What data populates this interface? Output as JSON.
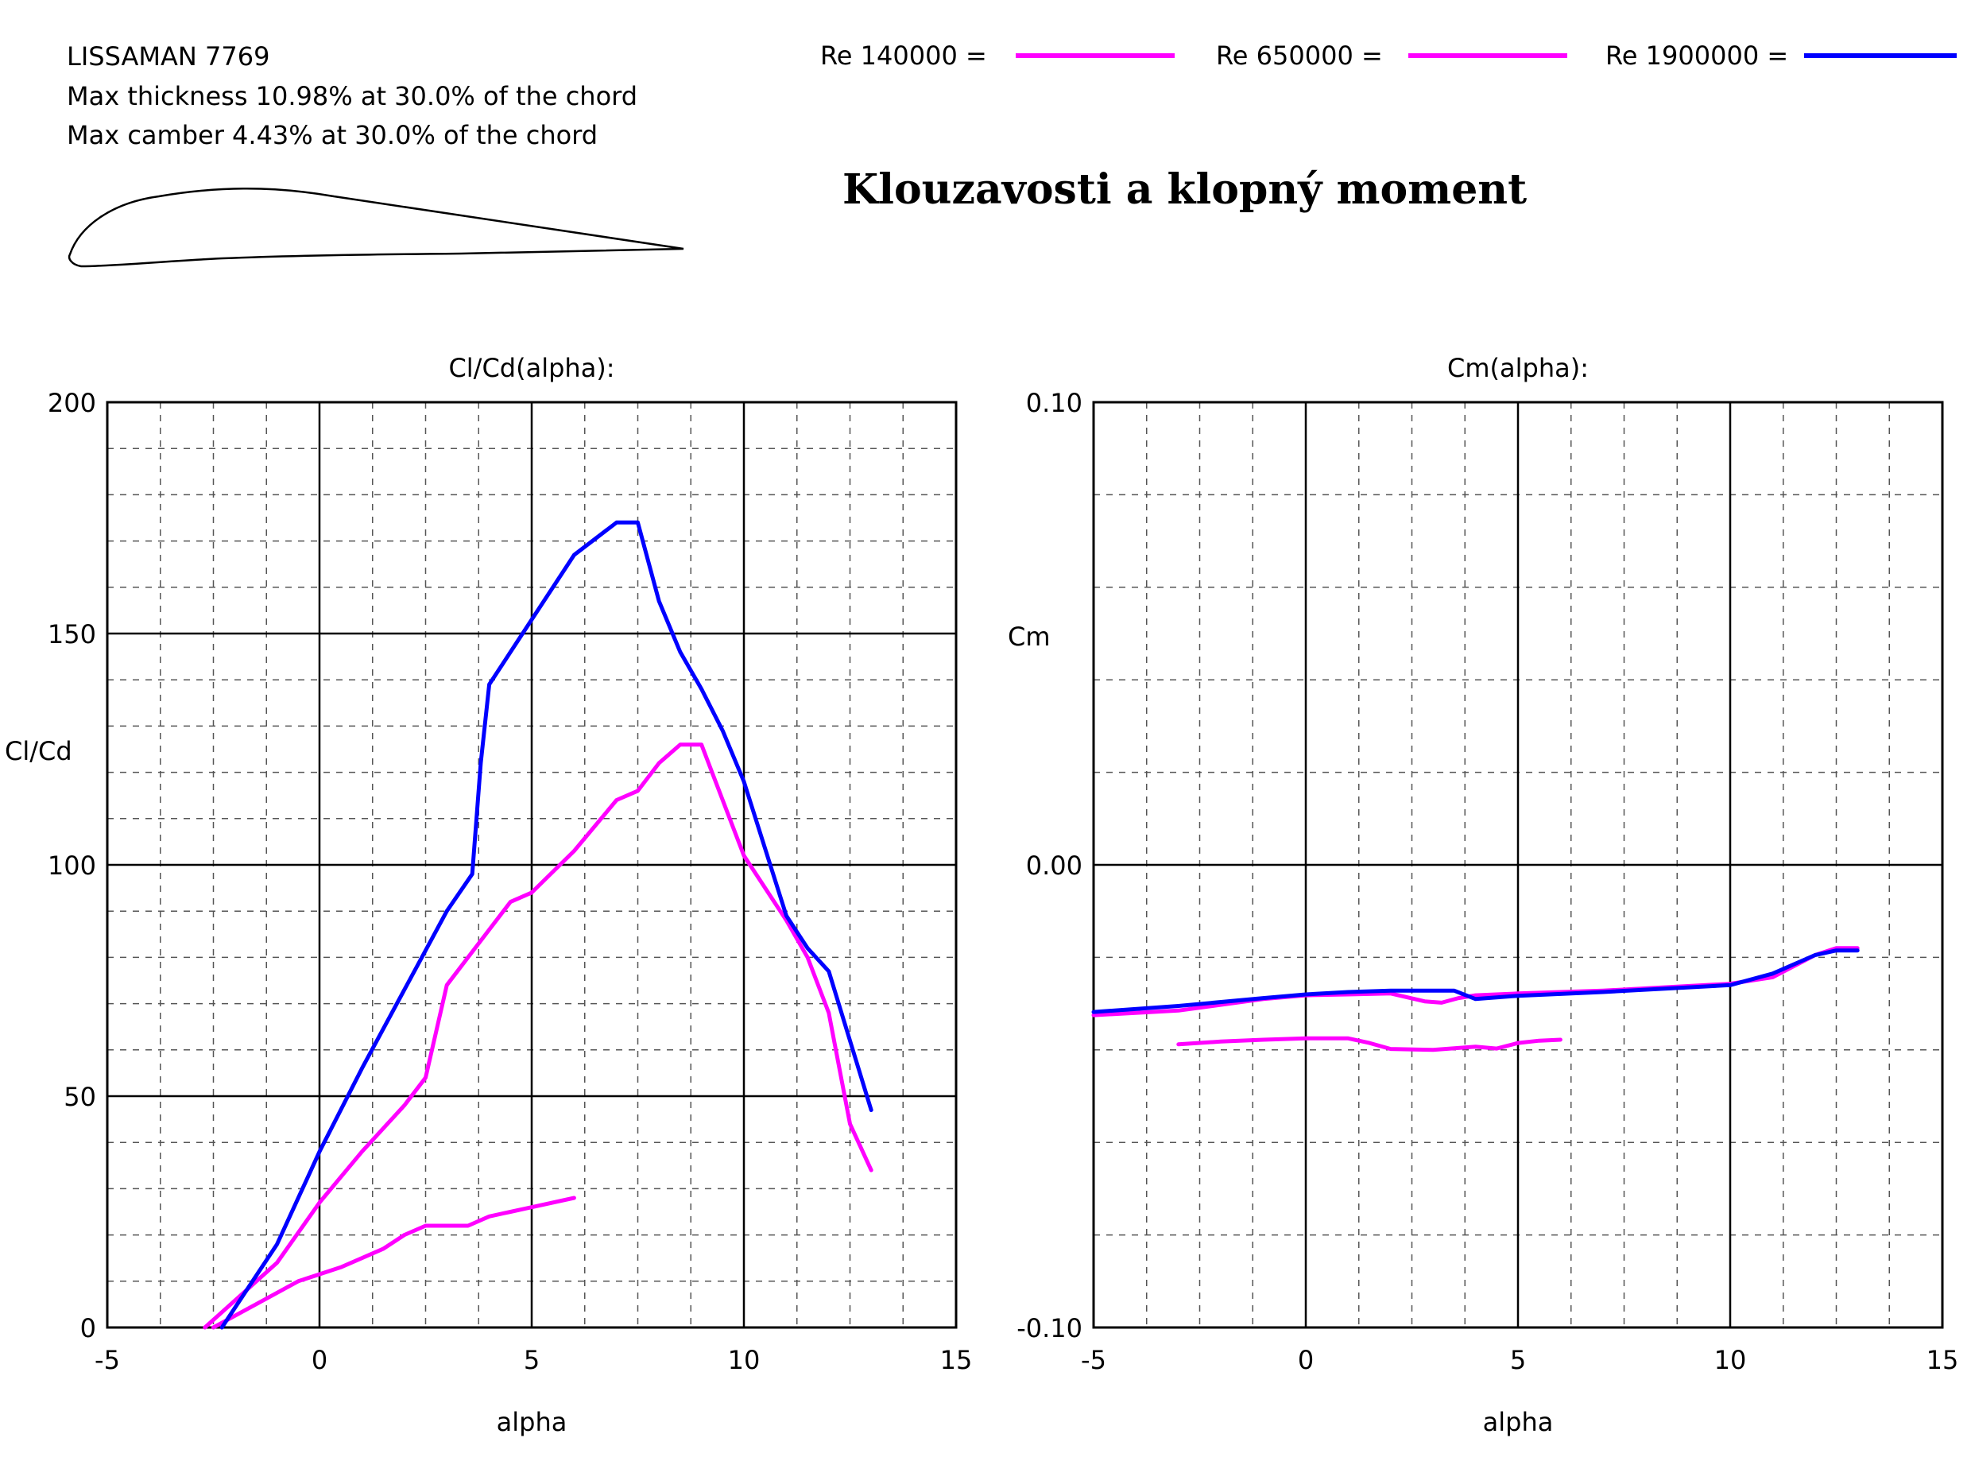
{
  "header": {
    "airfoil_name": "LISSAMAN 7769",
    "thickness_text": "Max thickness 10.98% at 30.0% of the chord",
    "camber_text": "Max camber 4.43% at 30.0% of the chord",
    "title": "Klouzavosti a klopný moment"
  },
  "legend": [
    {
      "label": "Re 140000 =",
      "color": "#ff00ff"
    },
    {
      "label": "Re 650000 =",
      "color": "#ff00ff"
    },
    {
      "label": "Re 1900000 =",
      "color": "#0000ff"
    }
  ],
  "chart_data": [
    {
      "type": "line",
      "title": "Cl/Cd(alpha):",
      "xlabel": "alpha",
      "ylabel": "Cl/Cd",
      "xlim": [
        -5,
        15
      ],
      "ylim": [
        0,
        200
      ],
      "xticks": [
        "-5",
        "0",
        "5",
        "10",
        "15"
      ],
      "yticks": [
        "0",
        "50",
        "100",
        "150",
        "200"
      ],
      "grid": true,
      "series": [
        {
          "name": "Re 140000",
          "color": "#ff00ff",
          "x": [
            -2.5,
            -1.5,
            -0.5,
            0.5,
            1.5,
            2,
            2.5,
            3.5,
            4,
            4.5,
            5,
            6
          ],
          "y": [
            0,
            5,
            10,
            13,
            17,
            20,
            22,
            22,
            24,
            25,
            26,
            28
          ]
        },
        {
          "name": "Re 650000",
          "color": "#ff00ff",
          "x": [
            -2.7,
            -1,
            0,
            1,
            1.5,
            2,
            2.5,
            3,
            3.5,
            4,
            4.5,
            5,
            6,
            7,
            7.5,
            8,
            8.5,
            9,
            10,
            11,
            11.5,
            12,
            12.5,
            13
          ],
          "y": [
            0,
            14,
            27,
            38,
            43,
            48,
            54,
            74,
            80,
            86,
            92,
            94,
            103,
            114,
            116,
            122,
            126,
            126,
            102,
            88,
            80,
            68,
            44,
            34
          ]
        },
        {
          "name": "Re 1900000",
          "color": "#0000ff",
          "x": [
            -2.3,
            -1,
            0,
            1,
            2,
            3,
            3.6,
            3.8,
            4,
            4.5,
            5,
            6,
            7,
            7.5,
            8,
            8.5,
            9,
            9.5,
            10,
            11,
            11.5,
            12,
            12.5,
            13
          ],
          "y": [
            0,
            18,
            38,
            56,
            73,
            90,
            98,
            122,
            139,
            146,
            153,
            167,
            174,
            174,
            157,
            146,
            138,
            129,
            118,
            89,
            82,
            77,
            62,
            47
          ]
        }
      ]
    },
    {
      "type": "line",
      "title": "Cm(alpha):",
      "xlabel": "alpha",
      "ylabel": "Cm",
      "xlim": [
        -5,
        15
      ],
      "ylim": [
        -0.1,
        0.1
      ],
      "xticks": [
        "-5",
        "0",
        "5",
        "10",
        "15"
      ],
      "yticks": [
        "-0.10",
        "0.00",
        "0.10"
      ],
      "grid": true,
      "series": [
        {
          "name": "Re 140000",
          "color": "#ff00ff",
          "x": [
            -3,
            -2,
            -1,
            0,
            1,
            1.5,
            2,
            3,
            4,
            4.5,
            5,
            5.5,
            6
          ],
          "y": [
            -0.0388,
            -0.0382,
            -0.0378,
            -0.0375,
            -0.0375,
            -0.0385,
            -0.0398,
            -0.04,
            -0.0393,
            -0.0397,
            -0.0385,
            -0.038,
            -0.0378
          ]
        },
        {
          "name": "Re 650000",
          "color": "#ff00ff",
          "x": [
            -5,
            -3,
            -1,
            0,
            1,
            2,
            2.8,
            3.2,
            3.6,
            4,
            5,
            7,
            10,
            11,
            12,
            12.5,
            13
          ],
          "y": [
            -0.0325,
            -0.0315,
            -0.029,
            -0.0282,
            -0.028,
            -0.0278,
            -0.0295,
            -0.0298,
            -0.0288,
            -0.0282,
            -0.0278,
            -0.0272,
            -0.0257,
            -0.0243,
            -0.0195,
            -0.018,
            -0.018
          ]
        },
        {
          "name": "Re 1900000",
          "color": "#0000ff",
          "x": [
            -5,
            -3,
            -1,
            0,
            1,
            2,
            3.5,
            4,
            5,
            7,
            10,
            11,
            12,
            12.5,
            13
          ],
          "y": [
            -0.0318,
            -0.0305,
            -0.0288,
            -0.028,
            -0.0275,
            -0.0272,
            -0.0272,
            -0.029,
            -0.0283,
            -0.0275,
            -0.026,
            -0.0235,
            -0.0195,
            -0.0185,
            -0.0185
          ]
        }
      ]
    }
  ]
}
